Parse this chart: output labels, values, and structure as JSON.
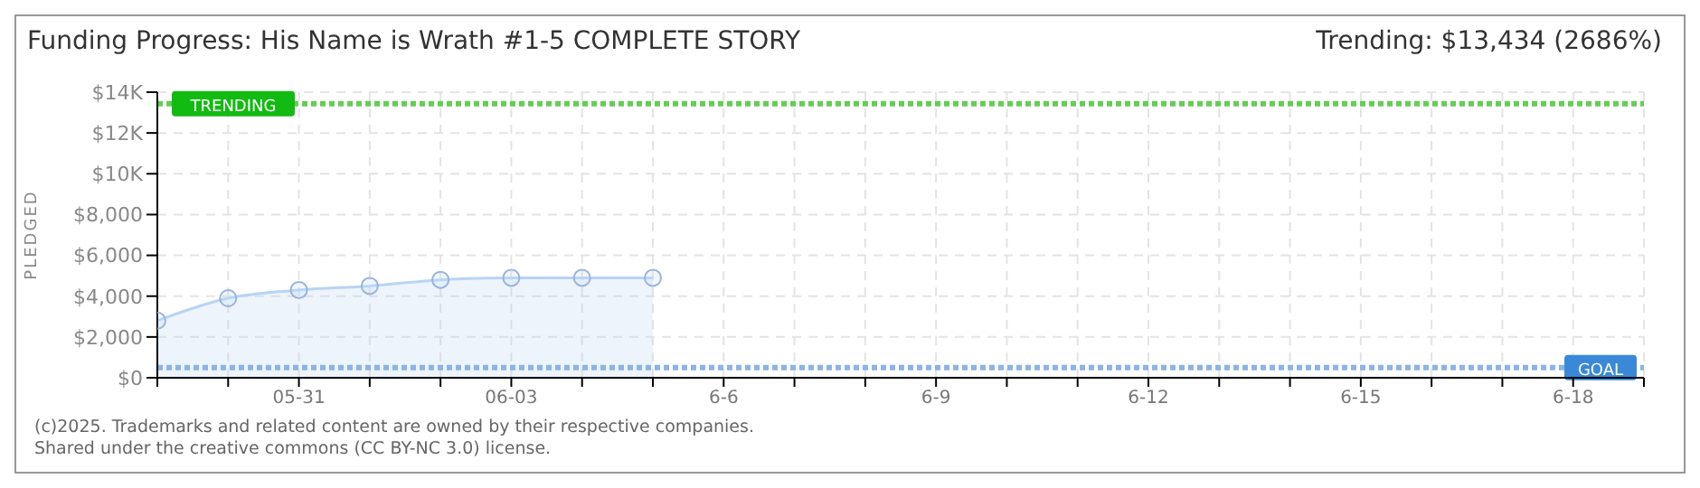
{
  "chart_data": {
    "type": "area",
    "title": "Funding Progress: His Name is Wrath #1-5 COMPLETE STORY",
    "subtitle": "Trending: $13,434 (2686%)",
    "ylabel": "PLEDGED",
    "categories": [
      null,
      null,
      "05-31",
      null,
      null,
      "06-03",
      null,
      null,
      "6-6",
      null,
      null,
      "6-9",
      null,
      null,
      "6-12",
      null,
      null,
      "6-15",
      null,
      null,
      "6-18",
      null
    ],
    "series": [
      {
        "color": "#b7d4f5",
        "values": [
          2800,
          3900,
          4300,
          4500,
          4800,
          4900,
          4900,
          4900,
          null,
          null,
          null,
          null,
          null,
          null,
          null,
          null,
          null,
          null,
          null,
          null,
          null,
          null
        ]
      }
    ],
    "ylim": [
      0,
      14000
    ],
    "yticks": [
      {
        "value": 0,
        "label": "$0"
      },
      {
        "value": 2000,
        "label": "$2,000"
      },
      {
        "value": 4000,
        "label": "$4,000"
      },
      {
        "value": 6000,
        "label": "$6,000"
      },
      {
        "value": 8000,
        "label": "$8,000"
      },
      {
        "value": 10000,
        "label": "$10K"
      },
      {
        "value": 12000,
        "label": "$12K"
      },
      {
        "value": 14000,
        "label": "$14K"
      }
    ],
    "ref_lines": [
      {
        "axis": "y",
        "value": 13434,
        "label": "TRENDING",
        "color": "#66cc55",
        "line_style": "dotted"
      },
      {
        "axis": "y",
        "value": 500,
        "label": "GOAL",
        "color": "#8ab4e6",
        "line_style": "dotted"
      }
    ],
    "grid": true,
    "marker": "circle",
    "legend": false,
    "annotations": [
      "(c)2025. Trademarks and related content are owned by their respective companies.",
      "Shared under the creative commons (CC BY-NC 3.0) license."
    ]
  }
}
